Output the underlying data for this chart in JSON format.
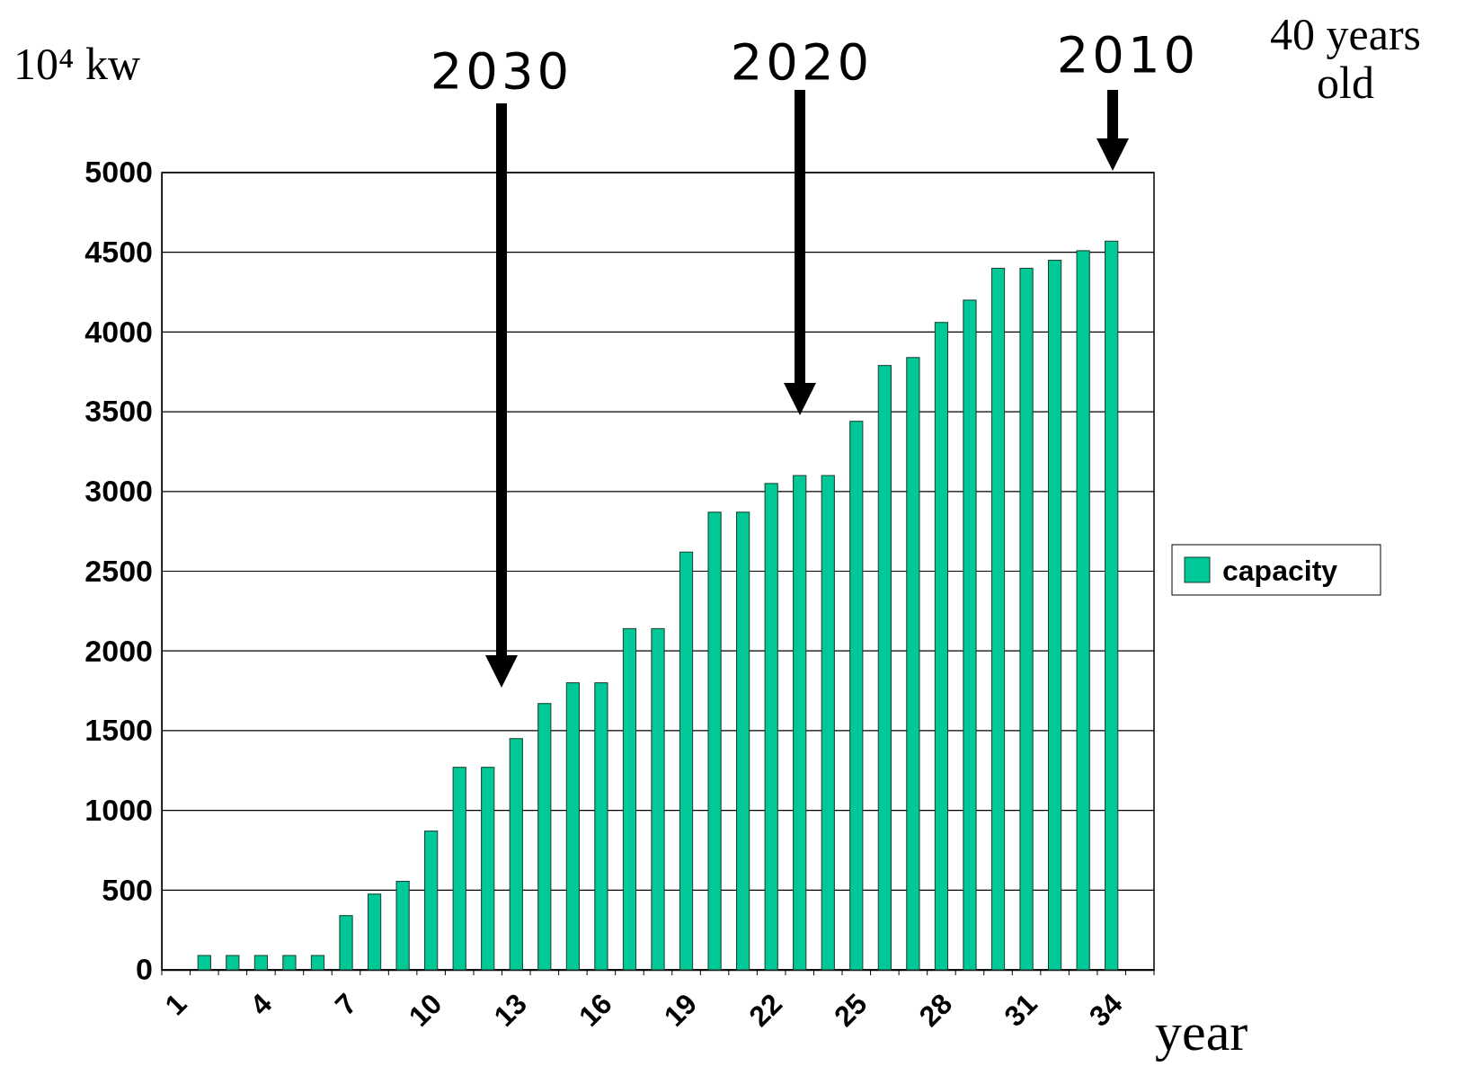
{
  "chart_data": {
    "type": "bar",
    "categories": [
      "1",
      null,
      null,
      "4",
      null,
      null,
      "7",
      null,
      null,
      "10",
      null,
      null,
      "13",
      null,
      null,
      "16",
      null,
      null,
      "19",
      null,
      null,
      "22",
      null,
      null,
      "25",
      null,
      null,
      "28",
      null,
      null,
      "31",
      null,
      null,
      "34",
      null
    ],
    "series": [
      {
        "name": "capacity",
        "color": "#00c896",
        "values": [
          null,
          90,
          90,
          90,
          90,
          90,
          340,
          475,
          555,
          870,
          1270,
          1270,
          1450,
          1670,
          1800,
          1800,
          2140,
          2140,
          2620,
          2870,
          2870,
          3050,
          3100,
          3100,
          3440,
          3790,
          3840,
          4060,
          4200,
          4400,
          4400,
          4450,
          4510,
          4570,
          null
        ]
      }
    ],
    "ylim": [
      0,
      5000
    ],
    "yticks": [
      0,
      500,
      1000,
      1500,
      2000,
      2500,
      3000,
      3500,
      4000,
      4500,
      5000
    ],
    "ylabel": "10⁴ kw",
    "xlabel": "year",
    "grid": "y",
    "legend": "right",
    "annotations": [
      "2030",
      "2020",
      "2010",
      "40 years old"
    ]
  }
}
